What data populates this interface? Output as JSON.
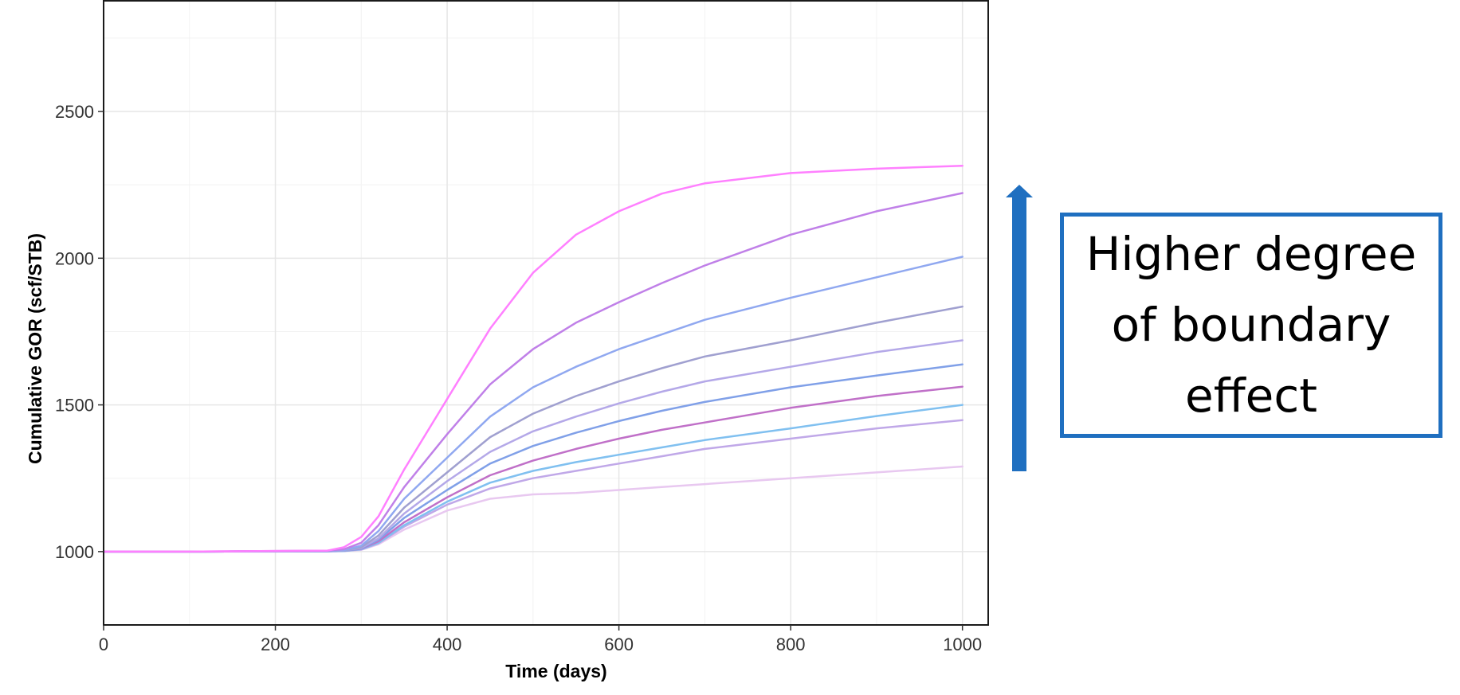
{
  "annotation": {
    "text": "Higher degree of boundary effect",
    "box_color": "#1f6fc0",
    "arrow_color": "#1f6fc0",
    "arrow_direction": "up"
  },
  "chart_data": {
    "type": "line",
    "title": "",
    "xlabel": "Time (days)",
    "ylabel": "Cumulative GOR (scf/STB)",
    "xlim": [
      0,
      1030
    ],
    "ylim": [
      750,
      2880
    ],
    "xticks": [
      0,
      200,
      400,
      600,
      800,
      1000
    ],
    "yticks": [
      1000,
      1500,
      2000,
      2500
    ],
    "grid": true,
    "legend": "none",
    "x": [
      0,
      100,
      200,
      260,
      280,
      300,
      320,
      350,
      400,
      450,
      500,
      550,
      600,
      650,
      700,
      800,
      900,
      1000
    ],
    "series": [
      {
        "color": "#ff80ff",
        "values": [
          1000,
          1000,
          1002,
          1003,
          1015,
          1050,
          1120,
          1280,
          1520,
          1760,
          1950,
          2080,
          2160,
          2220,
          2255,
          2290,
          2305,
          2315
        ]
      },
      {
        "color": "#c080e8",
        "values": [
          1000,
          1000,
          1002,
          1003,
          1008,
          1030,
          1090,
          1220,
          1400,
          1570,
          1690,
          1780,
          1850,
          1915,
          1975,
          2080,
          2160,
          2222
        ]
      },
      {
        "color": "#90a8f0",
        "values": [
          1000,
          1000,
          1001,
          1002,
          1005,
          1020,
          1070,
          1180,
          1320,
          1460,
          1560,
          1630,
          1690,
          1740,
          1790,
          1865,
          1935,
          2005
        ]
      },
      {
        "color": "#a0a0d0",
        "values": [
          1000,
          1000,
          1001,
          1002,
          1004,
          1015,
          1055,
          1150,
          1270,
          1390,
          1470,
          1530,
          1580,
          1625,
          1665,
          1720,
          1780,
          1835
        ]
      },
      {
        "color": "#b4a8e8",
        "values": [
          1000,
          1000,
          1001,
          1002,
          1004,
          1013,
          1045,
          1130,
          1240,
          1340,
          1410,
          1460,
          1505,
          1545,
          1580,
          1630,
          1680,
          1720
        ]
      },
      {
        "color": "#80a0e8",
        "values": [
          1000,
          1000,
          1001,
          1001,
          1003,
          1011,
          1040,
          1115,
          1210,
          1300,
          1360,
          1405,
          1445,
          1480,
          1510,
          1560,
          1600,
          1638
        ]
      },
      {
        "color": "#c070c8",
        "values": [
          1000,
          1000,
          1001,
          1001,
          1003,
          1010,
          1035,
          1100,
          1185,
          1260,
          1310,
          1350,
          1385,
          1415,
          1440,
          1490,
          1530,
          1562
        ]
      },
      {
        "color": "#80c0f0",
        "values": [
          1000,
          1000,
          1001,
          1001,
          1002,
          1008,
          1030,
          1090,
          1170,
          1235,
          1275,
          1305,
          1330,
          1355,
          1380,
          1420,
          1462,
          1500
        ]
      },
      {
        "color": "#c0a8e8",
        "values": [
          1000,
          1000,
          1001,
          1001,
          1002,
          1007,
          1028,
          1085,
          1160,
          1215,
          1250,
          1275,
          1300,
          1325,
          1350,
          1385,
          1420,
          1448
        ]
      },
      {
        "color": "#e8c8f0",
        "values": [
          1000,
          1000,
          1000,
          1001,
          1002,
          1006,
          1025,
          1075,
          1140,
          1180,
          1195,
          1200,
          1210,
          1220,
          1230,
          1250,
          1270,
          1290
        ]
      }
    ]
  }
}
